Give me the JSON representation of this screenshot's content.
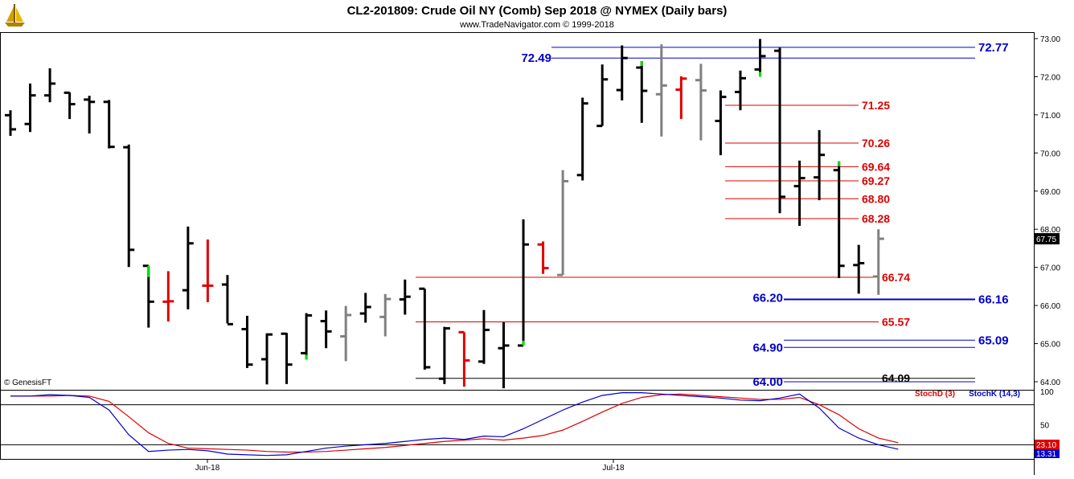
{
  "header": {
    "title": "CL2-201809:  Crude Oil NY (Comb) Sep 2018 @ NYMEX  (Daily bars)",
    "subtitle": "www.TradeNavigator.com © 1999-2018",
    "copyright": "© GenesisFT",
    "logo_icon": "sailboat-icon"
  },
  "colors": {
    "bar_black": "#000000",
    "bar_gray": "#808080",
    "bar_red": "#e00000",
    "signal_green": "#00e000",
    "level_blue": "#0000cc",
    "level_red": "#dd0000",
    "stoch_d": "#dd0000",
    "stoch_k": "#0000cc"
  },
  "chart_data": [
    {
      "type": "ohlc",
      "title": "CL2-201809:  Crude Oil NY (Comb) Sep 2018 @ NYMEX  (Daily bars)",
      "ylim": [
        63.9,
        73.1
      ],
      "y_ticks": [
        "73.00",
        "72.00",
        "71.00",
        "70.00",
        "69.00",
        "68.00",
        "67.00",
        "66.00",
        "65.00",
        "64.00"
      ],
      "x_ticks": [
        "Jun-18",
        "Jul-18"
      ],
      "last_price": "67.75",
      "bars": [
        {
          "o": 70.99,
          "h": 71.12,
          "l": 70.45,
          "c": 70.62,
          "color": "black"
        },
        {
          "o": 70.76,
          "h": 71.82,
          "l": 70.55,
          "c": 71.51,
          "color": "black"
        },
        {
          "o": 71.51,
          "h": 72.22,
          "l": 71.33,
          "c": 71.82,
          "color": "black"
        },
        {
          "o": 71.58,
          "h": 71.59,
          "l": 70.89,
          "c": 71.28,
          "color": "black"
        },
        {
          "o": 71.4,
          "h": 71.5,
          "l": 70.51,
          "c": 71.34,
          "color": "black"
        },
        {
          "o": 71.34,
          "h": 71.39,
          "l": 70.12,
          "c": 70.16,
          "color": "black"
        },
        {
          "o": 70.15,
          "h": 70.22,
          "l": 67.01,
          "c": 67.46,
          "color": "black"
        },
        {
          "o": 67.04,
          "h": 67.04,
          "l": 65.42,
          "c": 66.1,
          "color": "black",
          "green": "low_top"
        },
        {
          "o": 66.1,
          "h": 66.9,
          "l": 65.58,
          "c": 66.11,
          "color": "red"
        },
        {
          "o": 66.4,
          "h": 68.07,
          "l": 65.9,
          "c": 67.63,
          "color": "black"
        },
        {
          "o": 66.52,
          "h": 67.73,
          "l": 66.09,
          "c": 66.52,
          "color": "red"
        },
        {
          "o": 66.55,
          "h": 66.8,
          "l": 65.53,
          "c": 65.51,
          "color": "black"
        },
        {
          "o": 65.38,
          "h": 65.73,
          "l": 64.36,
          "c": 64.45,
          "color": "black"
        },
        {
          "o": 64.59,
          "h": 65.27,
          "l": 63.93,
          "c": 65.24,
          "color": "black"
        },
        {
          "o": 65.26,
          "h": 65.28,
          "l": 63.94,
          "c": 64.45,
          "color": "black"
        },
        {
          "o": 64.75,
          "h": 65.8,
          "l": 64.58,
          "c": 65.74,
          "color": "black",
          "green": "low_bottom"
        },
        {
          "o": 65.59,
          "h": 65.87,
          "l": 64.88,
          "c": 65.32,
          "color": "black"
        },
        {
          "o": 65.19,
          "h": 65.99,
          "l": 64.54,
          "c": 65.75,
          "color": "gray"
        },
        {
          "o": 65.79,
          "h": 66.33,
          "l": 65.55,
          "c": 65.96,
          "color": "black"
        },
        {
          "o": 65.7,
          "h": 66.3,
          "l": 65.19,
          "c": 66.17,
          "color": "gray"
        },
        {
          "o": 66.16,
          "h": 66.68,
          "l": 65.76,
          "c": 66.23,
          "color": "black"
        },
        {
          "o": 66.44,
          "h": 66.44,
          "l": 64.32,
          "c": 64.38,
          "color": "black"
        },
        {
          "o": 64.08,
          "h": 65.44,
          "l": 63.94,
          "c": 65.4,
          "color": "black"
        },
        {
          "o": 65.3,
          "h": 65.3,
          "l": 63.87,
          "c": 64.56,
          "color": "red"
        },
        {
          "o": 64.53,
          "h": 65.88,
          "l": 64.47,
          "c": 65.36,
          "color": "black"
        },
        {
          "o": 64.88,
          "h": 65.56,
          "l": 63.83,
          "c": 64.95,
          "color": "black"
        },
        {
          "o": 64.95,
          "h": 68.26,
          "l": 64.95,
          "c": 67.6,
          "color": "black",
          "green": "low_bottom"
        },
        {
          "o": 67.6,
          "h": 67.68,
          "l": 66.83,
          "c": 66.98,
          "color": "red"
        },
        {
          "o": 66.8,
          "h": 69.55,
          "l": 66.8,
          "c": 69.26,
          "color": "gray"
        },
        {
          "o": 69.42,
          "h": 71.45,
          "l": 69.28,
          "c": 71.3,
          "color": "black"
        },
        {
          "o": 70.71,
          "h": 72.32,
          "l": 70.71,
          "c": 71.93,
          "color": "black"
        },
        {
          "o": 71.65,
          "h": 72.82,
          "l": 71.38,
          "c": 72.49,
          "color": "black"
        },
        {
          "o": 72.24,
          "h": 72.41,
          "l": 70.79,
          "c": 71.63,
          "color": "black",
          "green": "high_top"
        },
        {
          "o": 71.54,
          "h": 72.85,
          "l": 70.43,
          "c": 71.77,
          "color": "gray"
        },
        {
          "o": 71.66,
          "h": 72.01,
          "l": 70.89,
          "c": 71.95,
          "color": "red"
        },
        {
          "o": 71.91,
          "h": 72.34,
          "l": 70.33,
          "c": 71.64,
          "color": "gray"
        },
        {
          "o": 70.84,
          "h": 71.64,
          "l": 69.94,
          "c": 71.47,
          "color": "black"
        },
        {
          "o": 71.6,
          "h": 72.16,
          "l": 71.12,
          "c": 71.96,
          "color": "black"
        },
        {
          "o": 72.19,
          "h": 72.99,
          "l": 72.0,
          "c": 72.54,
          "color": "black",
          "green": "low_bottom"
        },
        {
          "o": 72.68,
          "h": 72.76,
          "l": 68.42,
          "c": 68.85,
          "color": "black"
        },
        {
          "o": 69.13,
          "h": 69.8,
          "l": 68.09,
          "c": 69.34,
          "color": "black"
        },
        {
          "o": 69.36,
          "h": 70.6,
          "l": 68.76,
          "c": 69.95,
          "color": "black"
        },
        {
          "o": 69.55,
          "h": 69.78,
          "l": 66.72,
          "c": 67.04,
          "color": "black",
          "green": "high_top"
        },
        {
          "o": 67.06,
          "h": 67.59,
          "l": 66.31,
          "c": 67.11,
          "color": "black"
        },
        {
          "o": 66.76,
          "h": 68.0,
          "l": 66.28,
          "c": 67.75,
          "color": "gray"
        }
      ],
      "levels": [
        {
          "price": 72.77,
          "label": "72.77",
          "color": "blue",
          "label_side": "right"
        },
        {
          "price": 72.49,
          "label": "72.49",
          "color": "blue",
          "label_side": "left"
        },
        {
          "price": 71.25,
          "label": "71.25",
          "color": "red",
          "label_side": "right"
        },
        {
          "price": 70.26,
          "label": "70.26",
          "color": "red",
          "label_side": "right"
        },
        {
          "price": 69.64,
          "label": "69.64",
          "color": "red",
          "label_side": "right"
        },
        {
          "price": 69.27,
          "label": "69.27",
          "color": "red",
          "label_side": "right"
        },
        {
          "price": 68.8,
          "label": "68.80",
          "color": "red",
          "label_side": "right"
        },
        {
          "price": 68.28,
          "label": "68.28",
          "color": "red",
          "label_side": "right"
        },
        {
          "price": 66.74,
          "label": "66.74",
          "color": "red",
          "label_side": "right"
        },
        {
          "price": 66.2,
          "label": "66.20",
          "color": "blue",
          "label_side": "left"
        },
        {
          "price": 66.16,
          "label": "66.16",
          "color": "blue",
          "label_side": "right"
        },
        {
          "price": 65.57,
          "label": "65.57",
          "color": "red",
          "label_side": "right"
        },
        {
          "price": 65.09,
          "label": "65.09",
          "color": "blue",
          "label_side": "right"
        },
        {
          "price": 64.9,
          "label": "64.90",
          "color": "blue",
          "label_side": "left"
        },
        {
          "price": 64.09,
          "label": "64.09",
          "color": "black",
          "label_side": "right"
        },
        {
          "price": 64.0,
          "label": "64.00",
          "color": "blue",
          "label_side": "left"
        }
      ]
    },
    {
      "type": "line",
      "ylim": [
        0,
        100
      ],
      "y_ticks": [
        "100",
        "50"
      ],
      "reference_lines": [
        80,
        20
      ],
      "last_values": {
        "stoch_d": "23.10",
        "stoch_k": "13.31"
      },
      "series": [
        {
          "name": "StochD (3)",
          "color": "red",
          "values": [
            93,
            93,
            93,
            94,
            93,
            85,
            62,
            38,
            22,
            15,
            14,
            13,
            12,
            10,
            9,
            9,
            10,
            12,
            14,
            16,
            19,
            22,
            25,
            27,
            29,
            27,
            30,
            34,
            42,
            55,
            69,
            82,
            91,
            95,
            96,
            94,
            92,
            90,
            88,
            88,
            91,
            80,
            65,
            44,
            30,
            23.1
          ]
        },
        {
          "name": "StochK (14,3)",
          "color": "blue",
          "values": [
            93,
            93,
            95,
            94,
            91,
            72,
            35,
            10,
            12,
            13,
            11,
            6,
            5,
            4,
            5,
            10,
            15,
            18,
            20,
            22,
            25,
            28,
            30,
            28,
            33,
            32,
            44,
            58,
            72,
            84,
            94,
            98,
            98,
            96,
            94,
            92,
            90,
            87,
            86,
            90,
            96,
            75,
            45,
            30,
            20,
            13.31
          ]
        }
      ]
    }
  ]
}
